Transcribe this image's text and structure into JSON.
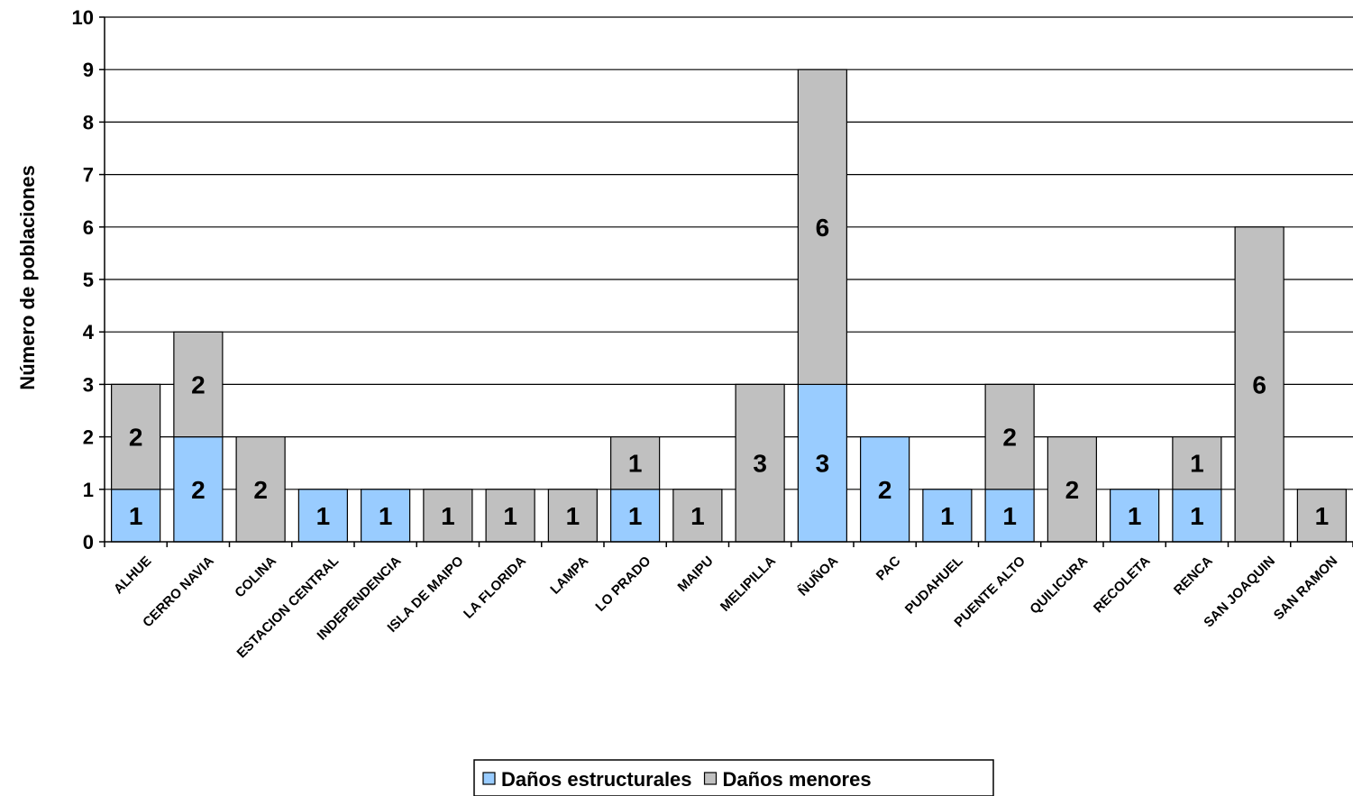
{
  "chart_data": {
    "type": "bar",
    "stacked": true,
    "ylabel": "Número de poblaciones",
    "xlabel": "",
    "ylim": [
      0,
      10
    ],
    "y_ticks": [
      0,
      1,
      2,
      3,
      4,
      5,
      6,
      7,
      8,
      9,
      10
    ],
    "grid": true,
    "legend_position": "bottom",
    "categories": [
      "ALHUE",
      "CERRO NAVIA",
      "COLINA",
      "ESTACION CENTRAL",
      "INDEPENDENCIA",
      "ISLA DE MAIPO",
      "LA FLORIDA",
      "LAMPA",
      "LO PRADO",
      "MAIPU",
      "MELIPILLA",
      "ÑUÑOA",
      "PAC",
      "PUDAHUEL",
      "PUENTE ALTO",
      "QUILICURA",
      "RECOLETA",
      "RENCA",
      "SAN JOAQUIN",
      "SAN RAMON"
    ],
    "series": [
      {
        "name": "Daños estructurales",
        "color": "#99ccff",
        "values": [
          1,
          2,
          0,
          1,
          1,
          0,
          0,
          0,
          1,
          0,
          0,
          3,
          2,
          1,
          1,
          0,
          1,
          1,
          0,
          0
        ]
      },
      {
        "name": "Daños menores",
        "color": "#c0c0c0",
        "values": [
          2,
          2,
          2,
          0,
          0,
          1,
          1,
          1,
          1,
          1,
          3,
          6,
          0,
          0,
          2,
          2,
          0,
          1,
          6,
          1
        ]
      }
    ]
  }
}
